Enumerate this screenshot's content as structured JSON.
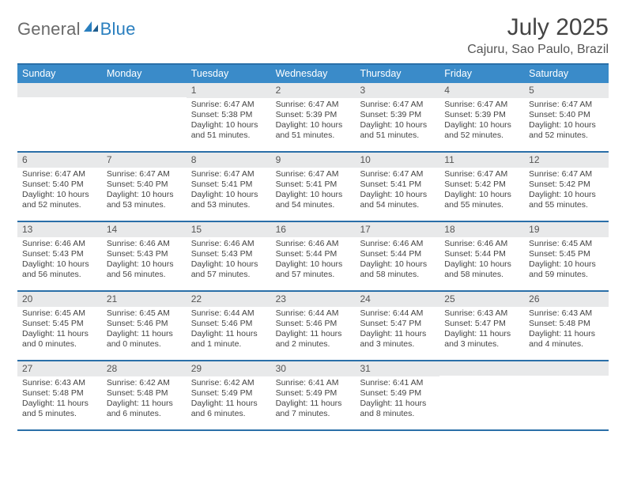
{
  "logo": {
    "word1": "General",
    "word2": "Blue"
  },
  "title": "July 2025",
  "location": "Cajuru, Sao Paulo, Brazil",
  "colors": {
    "header_bg": "#3a8bc9",
    "border": "#2a6fa8",
    "daynum_bg": "#e8e9ea",
    "text": "#444444",
    "logo_gray": "#6a6a6a",
    "logo_blue": "#2a7fbf"
  },
  "day_headers": [
    "Sunday",
    "Monday",
    "Tuesday",
    "Wednesday",
    "Thursday",
    "Friday",
    "Saturday"
  ],
  "weeks": [
    [
      {
        "n": "",
        "sr": "",
        "ss": "",
        "dl": ""
      },
      {
        "n": "",
        "sr": "",
        "ss": "",
        "dl": ""
      },
      {
        "n": "1",
        "sr": "Sunrise: 6:47 AM",
        "ss": "Sunset: 5:38 PM",
        "dl": "Daylight: 10 hours and 51 minutes."
      },
      {
        "n": "2",
        "sr": "Sunrise: 6:47 AM",
        "ss": "Sunset: 5:39 PM",
        "dl": "Daylight: 10 hours and 51 minutes."
      },
      {
        "n": "3",
        "sr": "Sunrise: 6:47 AM",
        "ss": "Sunset: 5:39 PM",
        "dl": "Daylight: 10 hours and 51 minutes."
      },
      {
        "n": "4",
        "sr": "Sunrise: 6:47 AM",
        "ss": "Sunset: 5:39 PM",
        "dl": "Daylight: 10 hours and 52 minutes."
      },
      {
        "n": "5",
        "sr": "Sunrise: 6:47 AM",
        "ss": "Sunset: 5:40 PM",
        "dl": "Daylight: 10 hours and 52 minutes."
      }
    ],
    [
      {
        "n": "6",
        "sr": "Sunrise: 6:47 AM",
        "ss": "Sunset: 5:40 PM",
        "dl": "Daylight: 10 hours and 52 minutes."
      },
      {
        "n": "7",
        "sr": "Sunrise: 6:47 AM",
        "ss": "Sunset: 5:40 PM",
        "dl": "Daylight: 10 hours and 53 minutes."
      },
      {
        "n": "8",
        "sr": "Sunrise: 6:47 AM",
        "ss": "Sunset: 5:41 PM",
        "dl": "Daylight: 10 hours and 53 minutes."
      },
      {
        "n": "9",
        "sr": "Sunrise: 6:47 AM",
        "ss": "Sunset: 5:41 PM",
        "dl": "Daylight: 10 hours and 54 minutes."
      },
      {
        "n": "10",
        "sr": "Sunrise: 6:47 AM",
        "ss": "Sunset: 5:41 PM",
        "dl": "Daylight: 10 hours and 54 minutes."
      },
      {
        "n": "11",
        "sr": "Sunrise: 6:47 AM",
        "ss": "Sunset: 5:42 PM",
        "dl": "Daylight: 10 hours and 55 minutes."
      },
      {
        "n": "12",
        "sr": "Sunrise: 6:47 AM",
        "ss": "Sunset: 5:42 PM",
        "dl": "Daylight: 10 hours and 55 minutes."
      }
    ],
    [
      {
        "n": "13",
        "sr": "Sunrise: 6:46 AM",
        "ss": "Sunset: 5:43 PM",
        "dl": "Daylight: 10 hours and 56 minutes."
      },
      {
        "n": "14",
        "sr": "Sunrise: 6:46 AM",
        "ss": "Sunset: 5:43 PM",
        "dl": "Daylight: 10 hours and 56 minutes."
      },
      {
        "n": "15",
        "sr": "Sunrise: 6:46 AM",
        "ss": "Sunset: 5:43 PM",
        "dl": "Daylight: 10 hours and 57 minutes."
      },
      {
        "n": "16",
        "sr": "Sunrise: 6:46 AM",
        "ss": "Sunset: 5:44 PM",
        "dl": "Daylight: 10 hours and 57 minutes."
      },
      {
        "n": "17",
        "sr": "Sunrise: 6:46 AM",
        "ss": "Sunset: 5:44 PM",
        "dl": "Daylight: 10 hours and 58 minutes."
      },
      {
        "n": "18",
        "sr": "Sunrise: 6:46 AM",
        "ss": "Sunset: 5:44 PM",
        "dl": "Daylight: 10 hours and 58 minutes."
      },
      {
        "n": "19",
        "sr": "Sunrise: 6:45 AM",
        "ss": "Sunset: 5:45 PM",
        "dl": "Daylight: 10 hours and 59 minutes."
      }
    ],
    [
      {
        "n": "20",
        "sr": "Sunrise: 6:45 AM",
        "ss": "Sunset: 5:45 PM",
        "dl": "Daylight: 11 hours and 0 minutes."
      },
      {
        "n": "21",
        "sr": "Sunrise: 6:45 AM",
        "ss": "Sunset: 5:46 PM",
        "dl": "Daylight: 11 hours and 0 minutes."
      },
      {
        "n": "22",
        "sr": "Sunrise: 6:44 AM",
        "ss": "Sunset: 5:46 PM",
        "dl": "Daylight: 11 hours and 1 minute."
      },
      {
        "n": "23",
        "sr": "Sunrise: 6:44 AM",
        "ss": "Sunset: 5:46 PM",
        "dl": "Daylight: 11 hours and 2 minutes."
      },
      {
        "n": "24",
        "sr": "Sunrise: 6:44 AM",
        "ss": "Sunset: 5:47 PM",
        "dl": "Daylight: 11 hours and 3 minutes."
      },
      {
        "n": "25",
        "sr": "Sunrise: 6:43 AM",
        "ss": "Sunset: 5:47 PM",
        "dl": "Daylight: 11 hours and 3 minutes."
      },
      {
        "n": "26",
        "sr": "Sunrise: 6:43 AM",
        "ss": "Sunset: 5:48 PM",
        "dl": "Daylight: 11 hours and 4 minutes."
      }
    ],
    [
      {
        "n": "27",
        "sr": "Sunrise: 6:43 AM",
        "ss": "Sunset: 5:48 PM",
        "dl": "Daylight: 11 hours and 5 minutes."
      },
      {
        "n": "28",
        "sr": "Sunrise: 6:42 AM",
        "ss": "Sunset: 5:48 PM",
        "dl": "Daylight: 11 hours and 6 minutes."
      },
      {
        "n": "29",
        "sr": "Sunrise: 6:42 AM",
        "ss": "Sunset: 5:49 PM",
        "dl": "Daylight: 11 hours and 6 minutes."
      },
      {
        "n": "30",
        "sr": "Sunrise: 6:41 AM",
        "ss": "Sunset: 5:49 PM",
        "dl": "Daylight: 11 hours and 7 minutes."
      },
      {
        "n": "31",
        "sr": "Sunrise: 6:41 AM",
        "ss": "Sunset: 5:49 PM",
        "dl": "Daylight: 11 hours and 8 minutes."
      },
      {
        "n": "",
        "sr": "",
        "ss": "",
        "dl": ""
      },
      {
        "n": "",
        "sr": "",
        "ss": "",
        "dl": ""
      }
    ]
  ]
}
